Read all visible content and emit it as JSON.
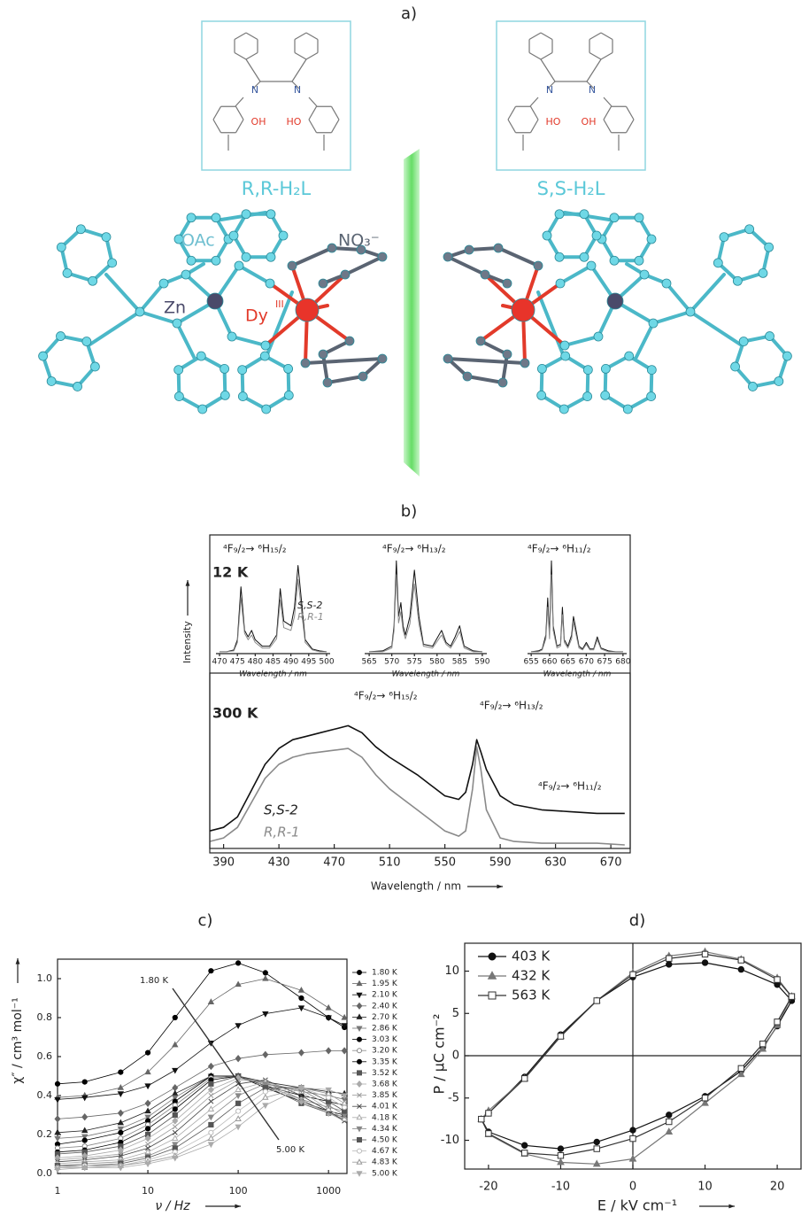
{
  "structure": {
    "panel_label": "a)",
    "ligands": [
      "R,R-H₂L",
      "S,S-H₂L"
    ],
    "ligand_atoms": [
      "N",
      "N",
      "OH",
      "HO"
    ],
    "labels": {
      "oac": "OAc",
      "no3": "NO₃⁻",
      "zn": "Zn",
      "dy": "Dy",
      "dy_sup": "III"
    }
  },
  "chart_data": [
    {
      "type": "line",
      "panel_label": "b)",
      "temperature": "300 K",
      "xlabel": "Wavelength / nm",
      "ylabel": "Intensity",
      "x": [
        380,
        390,
        400,
        410,
        420,
        430,
        440,
        450,
        460,
        470,
        480,
        490,
        500,
        510,
        520,
        530,
        540,
        550,
        560,
        565,
        570,
        573,
        576,
        580,
        590,
        600,
        620,
        640,
        660,
        680
      ],
      "series": [
        {
          "name": "S,S-2",
          "color": "#111111",
          "values": [
            10,
            12,
            18,
            33,
            48,
            57,
            62,
            64,
            66,
            68,
            70,
            66,
            58,
            52,
            47,
            42,
            36,
            30,
            28,
            32,
            48,
            62,
            55,
            45,
            30,
            25,
            22,
            21,
            20,
            20
          ]
        },
        {
          "name": "R,R-1",
          "color": "#8a8a8a",
          "values": [
            4,
            6,
            12,
            26,
            40,
            48,
            52,
            54,
            55,
            56,
            57,
            52,
            42,
            34,
            28,
            22,
            16,
            10,
            7,
            10,
            34,
            58,
            45,
            22,
            6,
            4,
            3,
            3,
            3,
            2
          ]
        }
      ],
      "xlim": [
        380,
        684
      ],
      "xticks": [
        390,
        430,
        470,
        510,
        550,
        590,
        630,
        670
      ],
      "ylim": [
        0,
        100
      ],
      "annotations": [
        "⁴F₉/₂→ ⁶H₁₅/₂",
        "⁴F₉/₂→ ⁶H₁₃/₂",
        "⁴F₉/₂→ ⁶H₁₁/₂"
      ]
    },
    {
      "type": "line",
      "temperature": "12 K",
      "xlabel": "Wavelength / nm",
      "annotation": "⁴F₉/₂→ ⁶H₁₅/₂",
      "x": [
        470,
        472,
        474,
        475,
        476,
        477,
        478,
        479,
        480,
        482,
        484,
        486,
        487,
        488,
        490,
        491,
        492,
        493,
        494,
        496,
        498,
        500
      ],
      "series": [
        {
          "name": "S,S-2",
          "color": "#111111",
          "values": [
            2,
            2,
            4,
            15,
            72,
            25,
            18,
            25,
            15,
            8,
            8,
            20,
            70,
            35,
            30,
            50,
            95,
            55,
            15,
            5,
            3,
            2
          ]
        },
        {
          "name": "R,R-1",
          "color": "#8a8a8a",
          "values": [
            2,
            2,
            3,
            12,
            60,
            22,
            15,
            20,
            12,
            6,
            6,
            16,
            58,
            28,
            25,
            40,
            80,
            45,
            12,
            4,
            2,
            2
          ]
        }
      ],
      "xlim": [
        469,
        501
      ],
      "xticks": [
        470,
        475,
        480,
        485,
        490,
        495,
        500
      ],
      "ylim": [
        0,
        105
      ]
    },
    {
      "type": "line",
      "xlabel": "Wavelength / nm",
      "annotation": "⁴F₉/₂→ ⁶H₁₃/₂",
      "x": [
        565,
        568,
        570,
        570.5,
        571,
        571.5,
        572,
        572.5,
        573,
        574,
        575,
        576,
        577,
        579,
        581,
        582,
        583,
        584,
        585,
        586,
        588,
        590
      ],
      "series": [
        {
          "color": "#111111",
          "values": [
            2,
            3,
            8,
            30,
            100,
            40,
            55,
            30,
            20,
            40,
            90,
            40,
            10,
            8,
            25,
            12,
            8,
            18,
            30,
            8,
            3,
            2
          ]
        },
        {
          "color": "#8a8a8a",
          "values": [
            2,
            2,
            6,
            25,
            85,
            33,
            45,
            25,
            16,
            32,
            75,
            32,
            8,
            6,
            20,
            10,
            6,
            14,
            24,
            6,
            2,
            2
          ]
        }
      ],
      "xlim": [
        564,
        591
      ],
      "xticks": [
        565,
        570,
        575,
        580,
        585,
        590
      ],
      "ylim": [
        0,
        105
      ]
    },
    {
      "type": "line",
      "xlabel": "Wavelength / nm",
      "annotation": "⁴F₉/₂→ ⁶H₁₁/₂",
      "x": [
        655,
        657,
        658,
        659,
        659.5,
        660,
        660.5,
        661,
        662,
        663,
        663.5,
        664,
        665,
        666,
        666.5,
        667,
        668,
        669,
        670,
        671,
        672,
        673,
        674,
        676,
        678,
        680
      ],
      "series": [
        {
          "color": "#111111",
          "values": [
            2,
            3,
            5,
            20,
            60,
            20,
            100,
            30,
            8,
            10,
            50,
            15,
            8,
            20,
            40,
            30,
            8,
            5,
            12,
            5,
            5,
            18,
            6,
            3,
            2,
            2
          ]
        },
        {
          "color": "#8a8a8a",
          "values": [
            2,
            2,
            4,
            16,
            50,
            16,
            85,
            25,
            6,
            8,
            42,
            12,
            6,
            16,
            34,
            25,
            6,
            4,
            10,
            4,
            4,
            15,
            5,
            2,
            2,
            2
          ]
        }
      ],
      "xlim": [
        654,
        681
      ],
      "xticks": [
        655,
        660,
        665,
        670,
        675,
        680
      ],
      "ylim": [
        0,
        105
      ]
    },
    {
      "type": "line",
      "panel_label": "c)",
      "xlabel": "ν / Hz",
      "ylabel": "χ″ / cm³ mol⁻¹",
      "xlog": true,
      "markers": true,
      "annotations": [
        "1.80 K",
        "5.00 K"
      ],
      "x": [
        1,
        2,
        5,
        10,
        20,
        50,
        100,
        200,
        500,
        1000,
        1500
      ],
      "series": [
        {
          "name": "1.80 K",
          "color": "#000000",
          "marker": "circle",
          "values": [
            0.46,
            0.47,
            0.52,
            0.62,
            0.8,
            1.04,
            1.08,
            1.03,
            0.9,
            0.8,
            0.75
          ]
        },
        {
          "name": "1.95 K",
          "color": "#666666",
          "marker": "triangle",
          "values": [
            0.39,
            0.4,
            0.44,
            0.52,
            0.66,
            0.88,
            0.97,
            1.0,
            0.94,
            0.85,
            0.8
          ]
        },
        {
          "name": "2.10 K",
          "color": "#111111",
          "marker": "triangle-down",
          "values": [
            0.38,
            0.39,
            0.41,
            0.45,
            0.53,
            0.67,
            0.76,
            0.82,
            0.85,
            0.8,
            0.76
          ]
        },
        {
          "name": "2.40 K",
          "color": "#666666",
          "marker": "diamond",
          "values": [
            0.28,
            0.29,
            0.31,
            0.36,
            0.44,
            0.55,
            0.59,
            0.61,
            0.62,
            0.63,
            0.63
          ]
        },
        {
          "name": "2.70 K",
          "color": "#222222",
          "marker": "triangle",
          "values": [
            0.21,
            0.22,
            0.26,
            0.32,
            0.41,
            0.5,
            0.5,
            0.47,
            0.44,
            0.42,
            0.41
          ]
        },
        {
          "name": "2.86 K",
          "color": "#777777",
          "marker": "triangle-down",
          "values": [
            0.18,
            0.19,
            0.23,
            0.29,
            0.39,
            0.5,
            0.5,
            0.46,
            0.42,
            0.4,
            0.38
          ]
        },
        {
          "name": "3.03 K",
          "color": "#000000",
          "marker": "circle",
          "values": [
            0.15,
            0.17,
            0.21,
            0.27,
            0.37,
            0.5,
            0.5,
            0.45,
            0.4,
            0.37,
            0.35
          ]
        },
        {
          "name": "3.20 K",
          "color": "#888888",
          "marker": "circle-open",
          "values": [
            0.13,
            0.14,
            0.18,
            0.25,
            0.35,
            0.49,
            0.5,
            0.45,
            0.38,
            0.34,
            0.32
          ]
        },
        {
          "name": "3.35 K",
          "color": "#000000",
          "marker": "circle",
          "values": [
            0.11,
            0.12,
            0.16,
            0.23,
            0.33,
            0.48,
            0.5,
            0.44,
            0.37,
            0.32,
            0.3
          ]
        },
        {
          "name": "3.52 K",
          "color": "#555555",
          "marker": "square",
          "values": [
            0.1,
            0.11,
            0.14,
            0.2,
            0.3,
            0.46,
            0.5,
            0.45,
            0.36,
            0.31,
            0.29
          ]
        },
        {
          "name": "3.68 K",
          "color": "#aaaaaa",
          "marker": "diamond",
          "values": [
            0.08,
            0.09,
            0.12,
            0.18,
            0.27,
            0.43,
            0.49,
            0.46,
            0.37,
            0.31,
            0.28
          ]
        },
        {
          "name": "3.85 K",
          "color": "#999999",
          "marker": "cross",
          "values": [
            0.07,
            0.08,
            0.1,
            0.15,
            0.24,
            0.4,
            0.48,
            0.47,
            0.38,
            0.31,
            0.27
          ]
        },
        {
          "name": "4.01 K",
          "color": "#444444",
          "marker": "cross",
          "values": [
            0.06,
            0.07,
            0.09,
            0.13,
            0.21,
            0.37,
            0.46,
            0.48,
            0.4,
            0.32,
            0.27
          ]
        },
        {
          "name": "4.18 K",
          "color": "#aaaaaa",
          "marker": "triangle-open",
          "values": [
            0.05,
            0.06,
            0.07,
            0.11,
            0.18,
            0.33,
            0.43,
            0.47,
            0.42,
            0.33,
            0.28
          ]
        },
        {
          "name": "4.34 K",
          "color": "#888888",
          "marker": "triangle-down",
          "values": [
            0.04,
            0.05,
            0.06,
            0.09,
            0.15,
            0.29,
            0.4,
            0.46,
            0.43,
            0.35,
            0.3
          ]
        },
        {
          "name": "4.50 K",
          "color": "#555555",
          "marker": "square",
          "values": [
            0.04,
            0.04,
            0.05,
            0.08,
            0.13,
            0.25,
            0.36,
            0.44,
            0.44,
            0.37,
            0.32
          ]
        },
        {
          "name": "4.67 K",
          "color": "#bbbbbb",
          "marker": "circle-open",
          "values": [
            0.03,
            0.04,
            0.04,
            0.07,
            0.11,
            0.21,
            0.32,
            0.42,
            0.44,
            0.39,
            0.34
          ]
        },
        {
          "name": "4.83 K",
          "color": "#999999",
          "marker": "triangle-open",
          "values": [
            0.03,
            0.03,
            0.04,
            0.06,
            0.09,
            0.18,
            0.28,
            0.39,
            0.44,
            0.41,
            0.36
          ]
        },
        {
          "name": "5.00 K",
          "color": "#aaaaaa",
          "marker": "triangle-down",
          "values": [
            0.02,
            0.03,
            0.03,
            0.05,
            0.08,
            0.15,
            0.24,
            0.35,
            0.44,
            0.43,
            0.4
          ]
        }
      ],
      "xlim": [
        1,
        1600
      ],
      "xticks": [
        1,
        10,
        100,
        1000
      ],
      "ylim": [
        0,
        1.1
      ],
      "yticks": [
        {
          "value": 0,
          "label": "0.0"
        },
        0.2,
        0.4,
        0.6,
        0.8,
        {
          "value": 1,
          "label": "1.0"
        }
      ]
    },
    {
      "type": "line",
      "panel_label": "d)",
      "xlabel": "E / kV cm⁻¹",
      "ylabel": "P / μC cm⁻²",
      "markers": true,
      "zero_lines": true,
      "series": [
        {
          "name": "403 K",
          "color": "#111111",
          "marker": "circle",
          "x": [
            22,
            20,
            15,
            10,
            5,
            0,
            -5,
            -10,
            -15,
            -20,
            -21,
            -20,
            -15,
            -10,
            -5,
            0,
            5,
            10,
            15,
            18,
            20,
            22
          ],
          "values": [
            6.5,
            8.4,
            10.2,
            11.0,
            10.8,
            9.3,
            6.5,
            2.5,
            -2.5,
            -6.8,
            -7.5,
            -9.0,
            -10.6,
            -11.0,
            -10.2,
            -8.8,
            -7.0,
            -4.8,
            -1.8,
            1.0,
            3.5,
            6.5
          ]
        },
        {
          "name": "432 K",
          "color": "#777777",
          "marker": "triangle",
          "x": [
            22,
            20,
            15,
            10,
            5,
            0,
            -5,
            -10,
            -15,
            -20,
            -21,
            -20,
            -15,
            -10,
            -5,
            0,
            5,
            10,
            15,
            18,
            20,
            22
          ],
          "values": [
            7.0,
            9.2,
            11.4,
            12.3,
            11.8,
            9.8,
            6.5,
            2.3,
            -2.7,
            -6.5,
            -7.5,
            -9.3,
            -11.6,
            -12.6,
            -12.8,
            -12.2,
            -9.0,
            -5.6,
            -2.2,
            0.8,
            3.6,
            7.0
          ]
        },
        {
          "name": "563 K",
          "color": "#333333",
          "marker": "square-open",
          "x": [
            22,
            20,
            15,
            10,
            5,
            0,
            -5,
            -10,
            -15,
            -20,
            -21,
            -20,
            -15,
            -10,
            -5,
            0,
            5,
            10,
            15,
            18,
            20,
            22
          ],
          "values": [
            7.0,
            9.0,
            11.3,
            12.0,
            11.5,
            9.6,
            6.5,
            2.3,
            -2.7,
            -6.8,
            -7.5,
            -9.2,
            -11.5,
            -11.8,
            -11.0,
            -9.8,
            -7.8,
            -5.0,
            -1.5,
            1.4,
            4.0,
            7.0
          ]
        }
      ],
      "xlim": [
        -23.3,
        23.3
      ],
      "xticks": [
        -20,
        -10,
        0,
        10,
        20
      ],
      "ylim": [
        -13.4,
        13.3
      ],
      "yticks": [
        -10,
        -5,
        0,
        5,
        10
      ]
    }
  ]
}
